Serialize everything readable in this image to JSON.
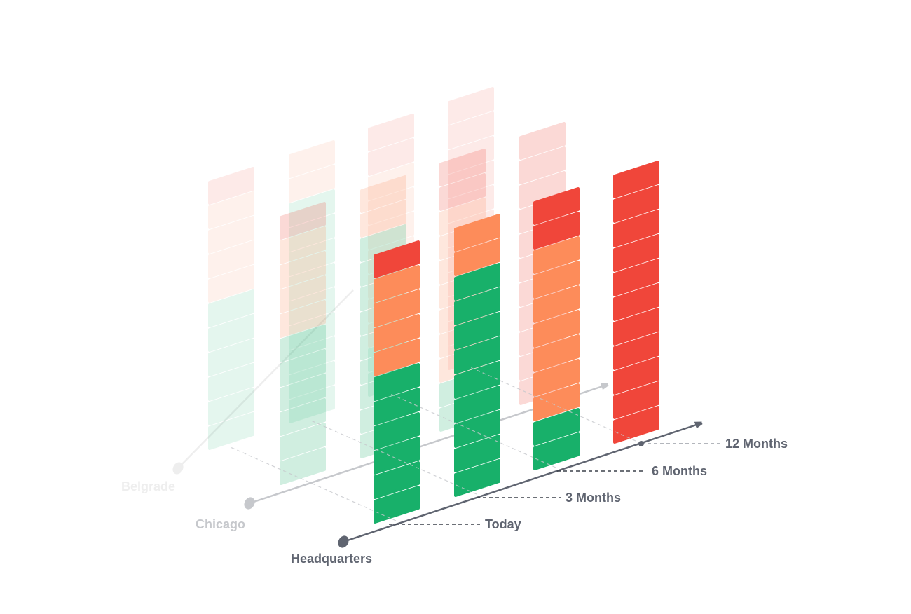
{
  "locations": [
    {
      "label": "Headquarters"
    },
    {
      "label": "Chicago"
    },
    {
      "label": "Belgrade"
    }
  ],
  "timepoints": [
    {
      "label": "Today",
      "segments": [
        {
          "level": "green",
          "count": 6
        },
        {
          "level": "orange",
          "count": 4
        },
        {
          "level": "red",
          "count": 1
        }
      ]
    },
    {
      "label": "3 Months",
      "segments": [
        {
          "level": "green",
          "count": 9
        },
        {
          "level": "orange",
          "count": 2
        },
        {
          "level": "red",
          "count": 0
        }
      ]
    },
    {
      "label": "6 Months",
      "segments": [
        {
          "level": "green",
          "count": 2
        },
        {
          "level": "orange",
          "count": 7
        },
        {
          "level": "red",
          "count": 2
        }
      ]
    },
    {
      "label": "12 Months",
      "segments": [
        {
          "level": "green",
          "count": 0
        },
        {
          "level": "orange",
          "count": 0
        },
        {
          "level": "red",
          "count": 11
        }
      ]
    }
  ]
}
